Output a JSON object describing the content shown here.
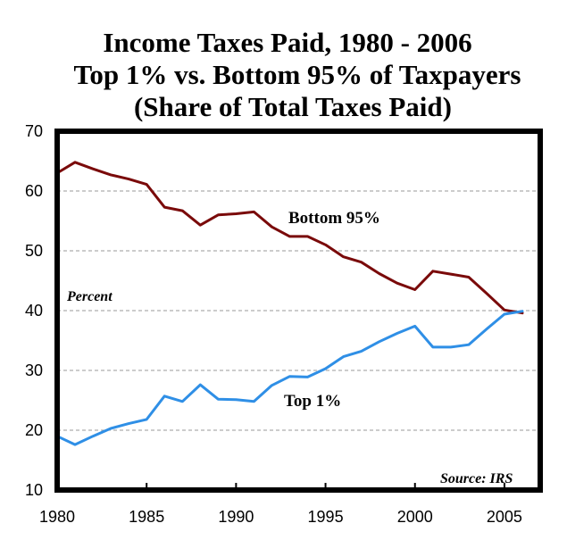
{
  "chart_data": {
    "type": "line",
    "title": [
      "Income Taxes Paid, 1980 - 2006",
      "Top 1% vs. Bottom 95% of Taxpayers",
      "(Share of Total Taxes Paid)"
    ],
    "ylabel": "Percent",
    "source": "Source: IRS",
    "xlim": [
      1980,
      2007
    ],
    "ylim": [
      10,
      70
    ],
    "x_ticks": [
      1980,
      1985,
      1990,
      1995,
      2000,
      2005
    ],
    "y_ticks": [
      10,
      20,
      30,
      40,
      50,
      60,
      70
    ],
    "grid": "horizontal-dashed",
    "x": [
      1980,
      1981,
      1982,
      1983,
      1984,
      1985,
      1986,
      1987,
      1988,
      1989,
      1990,
      1991,
      1992,
      1993,
      1994,
      1995,
      1996,
      1997,
      1998,
      1999,
      2000,
      2001,
      2002,
      2003,
      2004,
      2005,
      2006
    ],
    "series": [
      {
        "name": "Bottom 95%",
        "color": "#7a0a0a",
        "values": [
          63.0,
          64.8,
          63.7,
          62.7,
          62.0,
          61.1,
          57.3,
          56.7,
          54.3,
          56.0,
          56.2,
          56.5,
          54.0,
          52.4,
          52.4,
          51.0,
          49.0,
          48.1,
          46.2,
          44.6,
          43.5,
          46.6,
          46.1,
          45.6,
          42.9,
          40.1,
          39.6
        ]
      },
      {
        "name": "Top 1%",
        "color": "#2f8fe6",
        "values": [
          19.0,
          17.6,
          19.0,
          20.3,
          21.1,
          21.8,
          25.7,
          24.8,
          27.6,
          25.2,
          25.1,
          24.8,
          27.5,
          29.0,
          28.9,
          30.3,
          32.3,
          33.2,
          34.8,
          36.2,
          37.4,
          33.9,
          33.9,
          34.3,
          36.9,
          39.4,
          39.9
        ]
      }
    ]
  }
}
